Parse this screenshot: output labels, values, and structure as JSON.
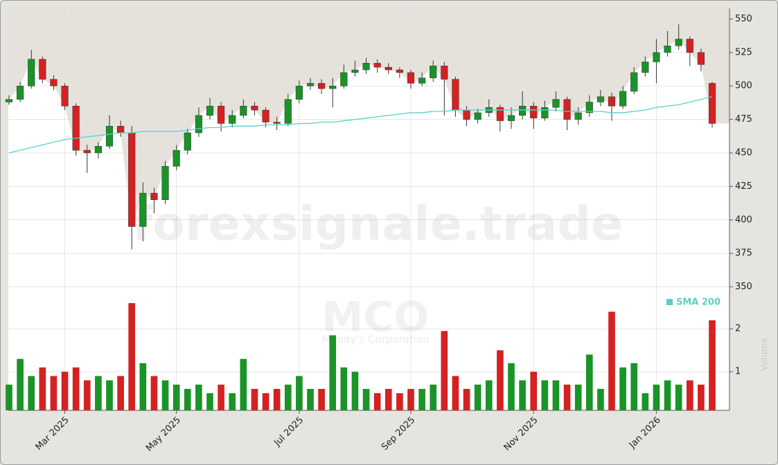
{
  "chart_data": {
    "type": "candlestick",
    "watermark": "forexsignale.trade",
    "symbol": "MCO",
    "company": "Moody's Corporation",
    "categories": [
      null,
      null,
      null,
      null,
      null,
      "Mar 2025",
      null,
      null,
      null,
      null,
      null,
      null,
      null,
      null,
      null,
      "May 2025",
      null,
      null,
      null,
      null,
      null,
      null,
      null,
      null,
      null,
      null,
      "Jul 2025",
      null,
      null,
      null,
      null,
      null,
      null,
      null,
      null,
      null,
      "Sep 2025",
      null,
      null,
      null,
      null,
      null,
      null,
      null,
      null,
      null,
      null,
      "Nov 2025",
      null,
      null,
      null,
      null,
      null,
      null,
      null,
      null,
      null,
      null,
      "Jan 2026",
      null,
      null,
      null,
      null,
      null
    ],
    "open": [
      488,
      490,
      500,
      520,
      505,
      500,
      485,
      452,
      450,
      455,
      470,
      465,
      395,
      420,
      415,
      440,
      452,
      465,
      478,
      485,
      472,
      478,
      485,
      482,
      473,
      472,
      490,
      500,
      502,
      498,
      500,
      510,
      512,
      517,
      514,
      512,
      510,
      502,
      506,
      515,
      505,
      482,
      475,
      480,
      484,
      474,
      478,
      485,
      476,
      484,
      490,
      475,
      480,
      488,
      492,
      485,
      496,
      510,
      518,
      525,
      530,
      535,
      525,
      502
    ],
    "high": [
      493,
      503,
      527,
      522,
      508,
      502,
      487,
      456,
      458,
      478,
      474,
      470,
      428,
      424,
      444,
      456,
      468,
      484,
      491,
      488,
      482,
      490,
      488,
      484,
      477,
      494,
      504,
      506,
      505,
      506,
      516,
      519,
      521,
      520,
      517,
      514,
      512,
      510,
      519,
      518,
      507,
      485,
      483,
      490,
      486,
      484,
      496,
      488,
      489,
      496,
      492,
      484,
      493,
      497,
      495,
      500,
      514,
      522,
      535,
      541,
      546,
      537,
      528,
      503
    ],
    "low": [
      486,
      488,
      498,
      502,
      497,
      482,
      448,
      435,
      446,
      453,
      462,
      378,
      384,
      405,
      412,
      437,
      449,
      462,
      475,
      466,
      469,
      476,
      478,
      469,
      467,
      470,
      487,
      497,
      494,
      484,
      498,
      507,
      509,
      510,
      509,
      506,
      498,
      500,
      503,
      478,
      477,
      470,
      472,
      477,
      466,
      468,
      475,
      468,
      474,
      481,
      467,
      471,
      477,
      485,
      474,
      483,
      494,
      507,
      502,
      522,
      527,
      515,
      511,
      469
    ],
    "close": [
      490,
      500,
      520,
      505,
      500,
      485,
      452,
      450,
      455,
      470,
      465,
      395,
      420,
      415,
      440,
      452,
      465,
      478,
      485,
      472,
      478,
      485,
      482,
      473,
      472,
      490,
      500,
      502,
      498,
      500,
      510,
      512,
      517,
      514,
      512,
      510,
      502,
      506,
      515,
      505,
      482,
      475,
      480,
      484,
      474,
      478,
      485,
      476,
      484,
      490,
      475,
      480,
      488,
      492,
      485,
      496,
      510,
      518,
      525,
      530,
      535,
      525,
      516,
      472
    ],
    "up_color": "#1a9428",
    "down_color": "#d42222",
    "ylim": [
      342,
      558
    ],
    "yticks": [
      350,
      375,
      400,
      425,
      450,
      475,
      500,
      525,
      550
    ],
    "grid": true,
    "sma": {
      "name": "SMA 200",
      "color": "#5ccfc8",
      "values": [
        450,
        452,
        454,
        456,
        458,
        460,
        461,
        462,
        463,
        464,
        465,
        465,
        466,
        466,
        466,
        466,
        467,
        468,
        469,
        469,
        470,
        470,
        470,
        471,
        471,
        471,
        472,
        472,
        473,
        473,
        474,
        475,
        476,
        477,
        478,
        479,
        480,
        480,
        481,
        481,
        482,
        482,
        482,
        482,
        482,
        482,
        482,
        482,
        482,
        482,
        481,
        481,
        481,
        481,
        480,
        480,
        481,
        482,
        484,
        485,
        486,
        488,
        490,
        492
      ]
    },
    "volume": {
      "label": "Volume",
      "values": [
        0.7,
        1.3,
        0.9,
        1.1,
        0.9,
        1.0,
        1.1,
        0.8,
        0.9,
        0.8,
        0.9,
        2.6,
        1.2,
        0.9,
        0.8,
        0.7,
        0.6,
        0.7,
        0.5,
        0.7,
        0.5,
        1.3,
        0.6,
        0.5,
        0.6,
        0.7,
        0.9,
        0.6,
        0.6,
        1.85,
        1.1,
        1.0,
        0.6,
        0.5,
        0.6,
        0.5,
        0.6,
        0.6,
        0.7,
        1.95,
        0.9,
        0.6,
        0.7,
        0.8,
        1.5,
        1.2,
        0.8,
        1.0,
        0.8,
        0.8,
        0.7,
        0.7,
        1.4,
        0.6,
        2.4,
        1.1,
        1.2,
        0.5,
        0.7,
        0.8,
        0.7,
        0.8,
        0.7,
        2.2
      ],
      "ylim": [
        0.1,
        2.73
      ],
      "yticks": [
        1,
        2
      ]
    }
  }
}
